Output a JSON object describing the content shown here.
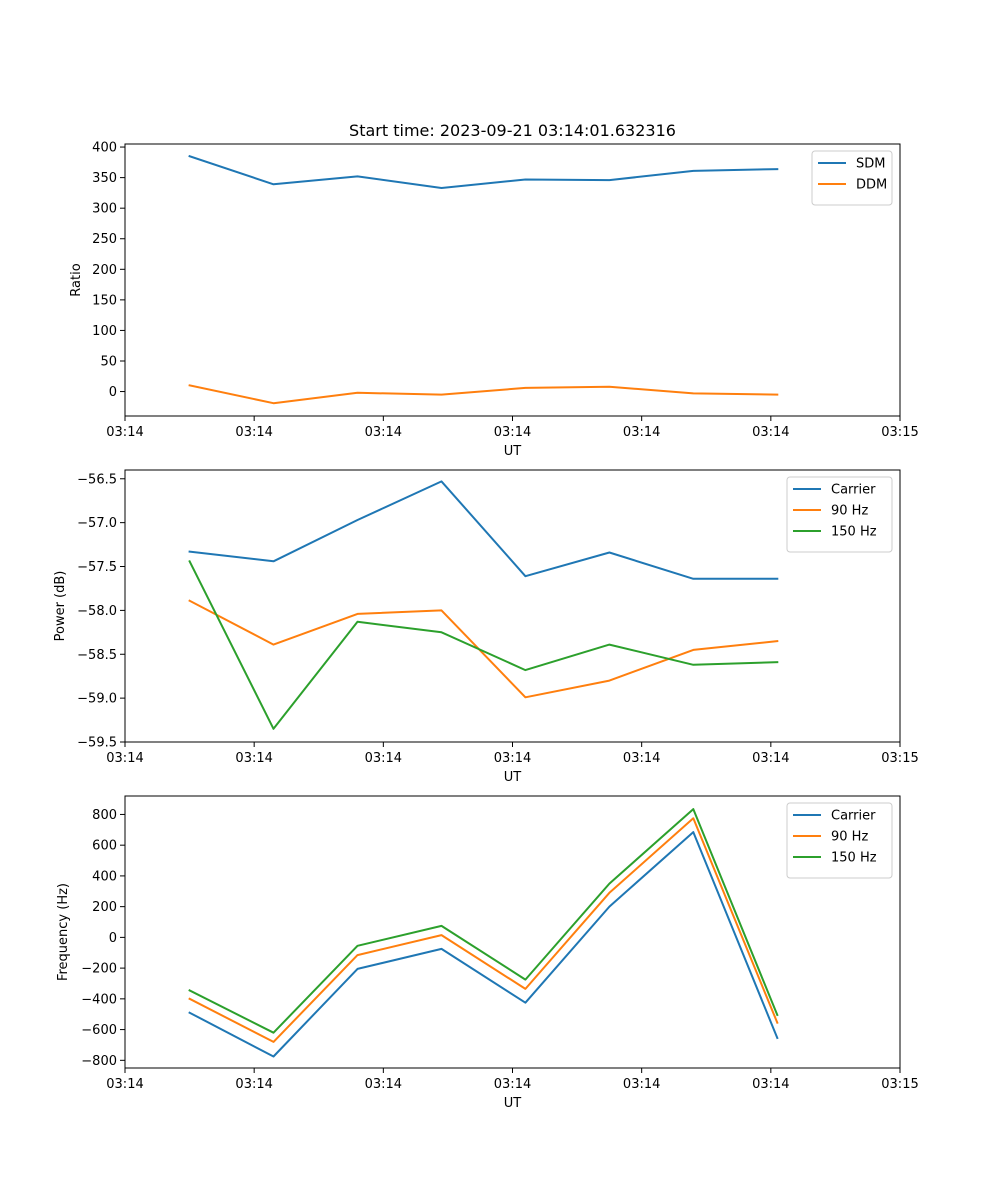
{
  "figure_title": "Start time: 2023-09-21 03:14:01.632316",
  "chart_data": [
    {
      "type": "line",
      "title": "Start time: 2023-09-21 03:14:01.632316",
      "xlabel": "UT",
      "ylabel": "Ratio",
      "x": [
        0.5,
        1.15,
        1.8,
        2.45,
        3.1,
        3.75,
        4.4,
        5.05
      ],
      "xlim": [
        0,
        6.0
      ],
      "xticks": [
        0,
        1,
        2,
        3,
        4,
        5,
        6
      ],
      "xtick_labels": [
        "03:14",
        "03:14",
        "03:14",
        "03:14",
        "03:14",
        "03:14",
        "03:15"
      ],
      "ylim": [
        -40,
        405
      ],
      "yticks": [
        0,
        50,
        100,
        150,
        200,
        250,
        300,
        350,
        400
      ],
      "ytick_labels": [
        "0",
        "50",
        "100",
        "150",
        "200",
        "250",
        "300",
        "350",
        "400"
      ],
      "legend": "top-right",
      "series": [
        {
          "name": "SDM",
          "color": "#1f77b4",
          "values": [
            385,
            339,
            352,
            333,
            347,
            346,
            361,
            364
          ]
        },
        {
          "name": "DDM",
          "color": "#ff7f0e",
          "values": [
            10,
            -19,
            -2,
            -5,
            6,
            8,
            -3,
            -5
          ]
        }
      ]
    },
    {
      "type": "line",
      "xlabel": "UT",
      "ylabel": "Power (dB)",
      "x": [
        0.5,
        1.15,
        1.8,
        2.45,
        3.1,
        3.75,
        4.4,
        5.05
      ],
      "xlim": [
        0,
        6.0
      ],
      "xticks": [
        0,
        1,
        2,
        3,
        4,
        5,
        6
      ],
      "xtick_labels": [
        "03:14",
        "03:14",
        "03:14",
        "03:14",
        "03:14",
        "03:14",
        "03:15"
      ],
      "ylim": [
        -59.5,
        -56.4
      ],
      "yticks": [
        -59.5,
        -59.0,
        -58.5,
        -58.0,
        -57.5,
        -57.0,
        -56.5
      ],
      "ytick_labels": [
        "−59.5",
        "−59.0",
        "−58.5",
        "−58.0",
        "−57.5",
        "−57.0",
        "−56.5"
      ],
      "legend": "top-right",
      "series": [
        {
          "name": "Carrier",
          "color": "#1f77b4",
          "values": [
            -57.33,
            -57.44,
            -56.97,
            -56.53,
            -57.61,
            -57.34,
            -57.64,
            -57.64
          ]
        },
        {
          "name": "90 Hz",
          "color": "#ff7f0e",
          "values": [
            -57.89,
            -58.39,
            -58.04,
            -58.0,
            -58.99,
            -58.8,
            -58.45,
            -58.35
          ]
        },
        {
          "name": "150 Hz",
          "color": "#2ca02c",
          "values": [
            -57.44,
            -59.35,
            -58.13,
            -58.25,
            -58.68,
            -58.39,
            -58.62,
            -58.59
          ]
        }
      ]
    },
    {
      "type": "line",
      "xlabel": "UT",
      "ylabel": "Frequency (Hz)",
      "x": [
        0.5,
        1.15,
        1.8,
        2.45,
        3.1,
        3.75,
        4.4,
        5.05
      ],
      "xlim": [
        0,
        6.0
      ],
      "xticks": [
        0,
        1,
        2,
        3,
        4,
        5,
        6
      ],
      "xtick_labels": [
        "03:14",
        "03:14",
        "03:14",
        "03:14",
        "03:14",
        "03:14",
        "03:15"
      ],
      "ylim": [
        -850,
        920
      ],
      "yticks": [
        -800,
        -600,
        -400,
        -200,
        0,
        200,
        400,
        600,
        800
      ],
      "ytick_labels": [
        "−800",
        "−600",
        "−400",
        "−200",
        "0",
        "200",
        "400",
        "600",
        "800"
      ],
      "legend": "top-right",
      "series": [
        {
          "name": "Carrier",
          "color": "#1f77b4",
          "values": [
            -490,
            -775,
            -205,
            -75,
            -425,
            200,
            685,
            -655
          ]
        },
        {
          "name": "90 Hz",
          "color": "#ff7f0e",
          "values": [
            -400,
            -680,
            -115,
            15,
            -335,
            290,
            775,
            -555
          ]
        },
        {
          "name": "150 Hz",
          "color": "#2ca02c",
          "values": [
            -345,
            -620,
            -55,
            75,
            -275,
            350,
            835,
            -505
          ]
        }
      ]
    }
  ]
}
